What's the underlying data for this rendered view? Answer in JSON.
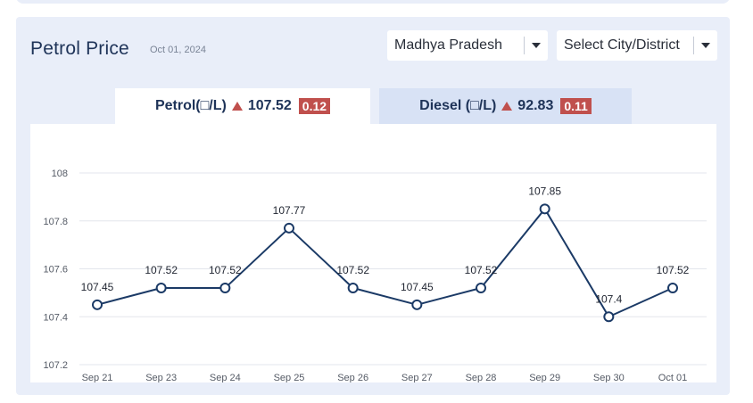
{
  "header": {
    "title": "Petrol Price",
    "date": "Oct 01, 2024"
  },
  "filters": {
    "state": "Madhya Pradesh",
    "city": "Select City/District"
  },
  "tabs": {
    "petrol": {
      "label": "Petrol(□/L)",
      "price": "107.52",
      "change": "0.12"
    },
    "diesel": {
      "label": "Diesel (□/L)",
      "price": "92.83",
      "change": "0.11"
    }
  },
  "colors": {
    "line": "#1b3a66",
    "increase": "#c0504d",
    "panel_bg": "#e9eef9"
  },
  "chart_data": {
    "type": "line",
    "categories": [
      "Sep 21",
      "Sep 23",
      "Sep 24",
      "Sep 25",
      "Sep 26",
      "Sep 27",
      "Sep 28",
      "Sep 29",
      "Sep 30",
      "Oct 01"
    ],
    "values": [
      107.45,
      107.52,
      107.52,
      107.77,
      107.52,
      107.45,
      107.52,
      107.85,
      107.4,
      107.52
    ],
    "data_labels": [
      "107.45",
      "107.52",
      "107.52",
      "107.77",
      "107.52",
      "107.45",
      "107.52",
      "107.85",
      "107.4",
      "107.52"
    ],
    "yticks": [
      "107.2",
      "107.4",
      "107.6",
      "107.8",
      "108"
    ],
    "ylim": [
      107.2,
      108
    ],
    "grid": true
  }
}
